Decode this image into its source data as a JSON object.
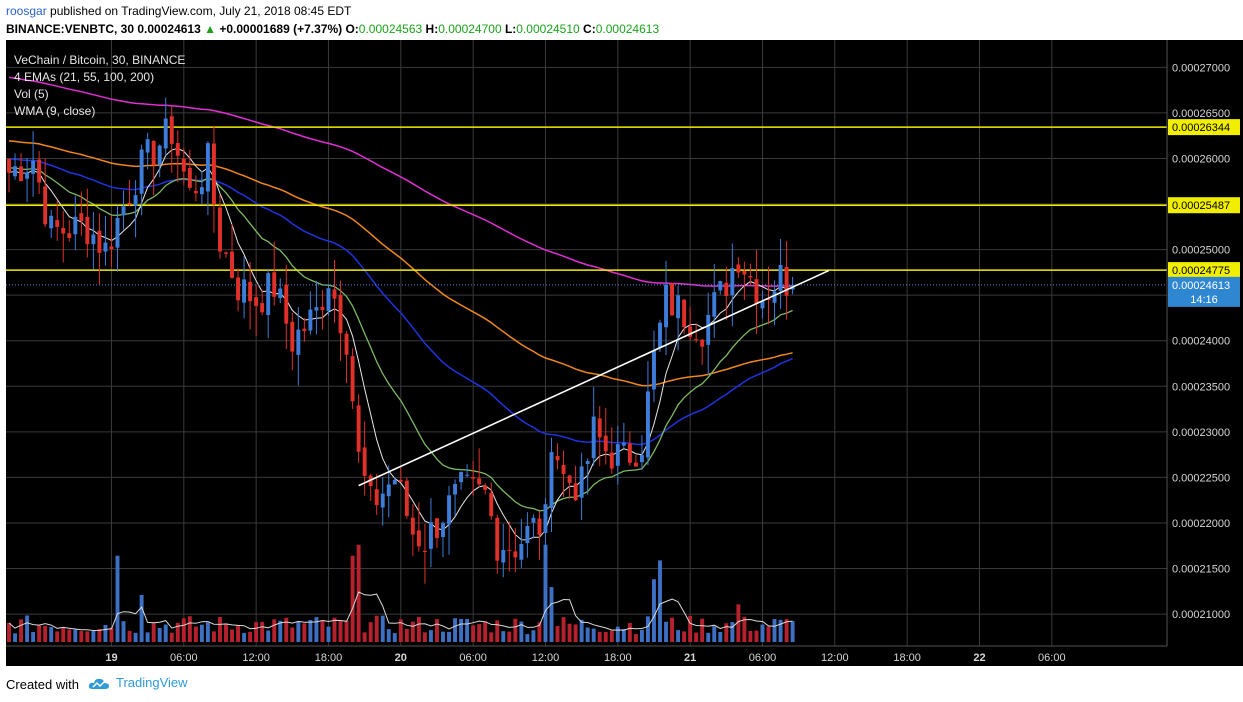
{
  "header": {
    "author": "roosgar",
    "published_text": "published on TradingView.com, July 21, 2018 08:45 EDT",
    "symbol": "BINANCE:VENBTC, 30",
    "last": "0.00024613",
    "change": "+0.00001689 (+7.37%)",
    "o_label": "O:",
    "o": "0.00024563",
    "h_label": "H:",
    "h": "0.00024700",
    "l_label": "L:",
    "l": "0.00024510",
    "c_label": "C:",
    "c": "0.00024613"
  },
  "legend": {
    "title": "VeChain / Bitcoin, 30, BINANCE",
    "emas": "4 EMAs (21, 55, 100, 200)",
    "vol": "Vol (5)",
    "wma": "WMA (9, close)"
  },
  "footer": {
    "created_with": "Created with",
    "brand": "TradingView"
  },
  "colors": {
    "background": "#000000",
    "grid": "#3a3a3a",
    "up": "#3d7dd9",
    "down": "#e0302a",
    "vol_up": "#3d6fc2",
    "vol_down": "#b5212c",
    "ema21": "#7dba63",
    "ema55": "#1f33e0",
    "ema100": "#f0871c",
    "ema200": "#e02fd4",
    "wma": "#e6e6e6",
    "hline": "#f2ee00",
    "trend": "#ffffff",
    "axis_text": "#d6d6d6",
    "last_badge": "#2f86d1"
  },
  "chart_data": {
    "type": "candlestick",
    "interval_minutes": 30,
    "y_axis": {
      "min": 0.0002065,
      "max": 0.000273,
      "ticks": [
        "0.00021000",
        "0.00021500",
        "0.00022000",
        "0.00022500",
        "0.00023000",
        "0.00023500",
        "0.00024000",
        "0.00024500",
        "0.00025000",
        "0.00025500",
        "0.00026000",
        "0.00026500",
        "0.00027000"
      ]
    },
    "x_axis": {
      "start": "2018-07-18 15:30",
      "end": "2018-07-22 09:30",
      "ticks": [
        {
          "label": "19",
          "time": "2018-07-19 00:00",
          "bold": true
        },
        {
          "label": "06:00",
          "time": "2018-07-19 06:00"
        },
        {
          "label": "12:00",
          "time": "2018-07-19 12:00"
        },
        {
          "label": "18:00",
          "time": "2018-07-19 18:00"
        },
        {
          "label": "20",
          "time": "2018-07-20 00:00",
          "bold": true
        },
        {
          "label": "06:00",
          "time": "2018-07-20 06:00"
        },
        {
          "label": "12:00",
          "time": "2018-07-20 12:00"
        },
        {
          "label": "18:00",
          "time": "2018-07-20 18:00"
        },
        {
          "label": "21",
          "time": "2018-07-21 00:00",
          "bold": true
        },
        {
          "label": "06:00",
          "time": "2018-07-21 06:00"
        },
        {
          "label": "12:00",
          "time": "2018-07-21 12:00"
        },
        {
          "label": "18:00",
          "time": "2018-07-21 18:00"
        },
        {
          "label": "22",
          "time": "2018-07-22 00:00",
          "bold": true
        },
        {
          "label": "06:00",
          "time": "2018-07-22 06:00"
        }
      ]
    },
    "horizontal_levels": [
      {
        "value": 0.00026344,
        "label": "0.00026344"
      },
      {
        "value": 0.00025487,
        "label": "0.00025487"
      },
      {
        "value": 0.00024775,
        "label": "0.00024775"
      }
    ],
    "last_price": {
      "value": 0.00024613,
      "label": "0.00024613",
      "countdown": "14:16"
    },
    "trendline": [
      {
        "time": "2018-07-19 20:30",
        "price": 0.0002241
      },
      {
        "time": "2018-07-21 11:30",
        "price": 0.0002477
      }
    ],
    "close_anchors": [
      [
        "2018-07-18 15:30",
        0.0002585
      ],
      [
        "2018-07-18 17:30",
        0.00026
      ],
      [
        "2018-07-18 19:00",
        0.000252
      ],
      [
        "2018-07-18 22:00",
        0.0002525
      ],
      [
        "2018-07-18 23:30",
        0.00025
      ],
      [
        "2018-07-19 02:00",
        0.000258
      ],
      [
        "2018-07-19 03:30",
        0.000261
      ],
      [
        "2018-07-19 05:00",
        0.000263
      ],
      [
        "2018-07-19 06:30",
        0.000256
      ],
      [
        "2018-07-19 08:00",
        0.0002595
      ],
      [
        "2018-07-19 09:00",
        0.000251
      ],
      [
        "2018-07-19 10:30",
        0.000246
      ],
      [
        "2018-07-19 12:00",
        0.0002445
      ],
      [
        "2018-07-19 13:30",
        0.000246
      ],
      [
        "2018-07-19 15:00",
        0.00024
      ],
      [
        "2018-07-19 17:00",
        0.000243
      ],
      [
        "2018-07-19 18:00",
        0.000247
      ],
      [
        "2018-07-19 19:30",
        0.0002405
      ],
      [
        "2018-07-19 20:30",
        0.000227
      ],
      [
        "2018-07-19 21:30",
        0.000222
      ],
      [
        "2018-07-19 23:30",
        0.000225
      ],
      [
        "2018-07-20 01:00",
        0.000219
      ],
      [
        "2018-07-20 02:00",
        0.000218
      ],
      [
        "2018-07-20 03:30",
        0.000221
      ],
      [
        "2018-07-20 05:00",
        0.0002235
      ],
      [
        "2018-07-20 07:00",
        0.000223
      ],
      [
        "2018-07-20 08:00",
        0.000218
      ],
      [
        "2018-07-20 09:30",
        0.0002175
      ],
      [
        "2018-07-20 11:00",
        0.0002195
      ],
      [
        "2018-07-20 12:00",
        0.00022
      ],
      [
        "2018-07-20 12:30",
        0.00023
      ],
      [
        "2018-07-20 13:30",
        0.000225
      ],
      [
        "2018-07-20 15:00",
        0.000224
      ],
      [
        "2018-07-20 16:00",
        0.00023
      ],
      [
        "2018-07-20 17:00",
        0.000228
      ],
      [
        "2018-07-20 18:30",
        0.000227
      ],
      [
        "2018-07-20 20:00",
        0.000229
      ],
      [
        "2018-07-20 21:00",
        0.000238
      ],
      [
        "2018-07-20 22:00",
        0.0002445
      ],
      [
        "2018-07-20 23:30",
        0.000243
      ],
      [
        "2018-07-21 01:00",
        0.0002415
      ],
      [
        "2018-07-21 02:30",
        0.000245
      ],
      [
        "2018-07-21 04:00",
        0.0002495
      ],
      [
        "2018-07-21 05:00",
        0.000247
      ],
      [
        "2018-07-21 06:00",
        0.000245
      ],
      [
        "2018-07-21 07:30",
        0.000247
      ],
      [
        "2018-07-21 08:30",
        0.00024613
      ]
    ],
    "volume_spikes": [
      [
        "2018-07-19 00:30",
        0.55
      ],
      [
        "2018-07-19 02:30",
        0.3
      ],
      [
        "2018-07-19 20:00",
        0.55
      ],
      [
        "2018-07-19 20:30",
        0.62
      ],
      [
        "2018-07-20 12:00",
        0.62
      ],
      [
        "2018-07-20 12:30",
        0.35
      ],
      [
        "2018-07-20 21:00",
        0.4
      ],
      [
        "2018-07-20 21:30",
        0.52
      ],
      [
        "2018-07-21 04:00",
        0.24
      ]
    ]
  }
}
